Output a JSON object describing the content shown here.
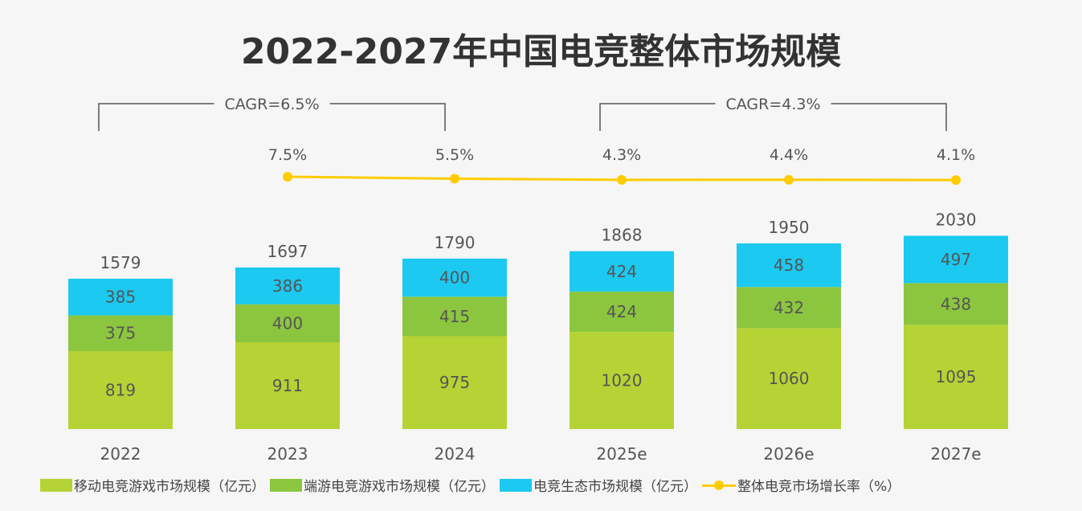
{
  "chart_data": {
    "type": "bar",
    "stacked": true,
    "title": "2022-2027年中国电竞整体市场规模",
    "categories": [
      "2022",
      "2023",
      "2024",
      "2025e",
      "2026e",
      "2027e"
    ],
    "series": [
      {
        "name": "移动电竞游戏市场规模（亿元）",
        "color": "#b5d334",
        "values": [
          819,
          911,
          975,
          1020,
          1060,
          1095
        ]
      },
      {
        "name": "端游电竞游戏市场规模（亿元）",
        "color": "#8cc63f",
        "values": [
          375,
          400,
          415,
          424,
          432,
          438
        ]
      },
      {
        "name": "电竞生态市场规模（亿元）",
        "color": "#1bc9f1",
        "values": [
          385,
          386,
          400,
          424,
          458,
          497
        ]
      }
    ],
    "totals": [
      "1579",
      "1697",
      "1790",
      "1868",
      "1950",
      "2030"
    ],
    "line_series": {
      "name": "整体电竞市场增长率（%）",
      "color": "#ffcc00",
      "categories": [
        "2023",
        "2024",
        "2025e",
        "2026e",
        "2027e"
      ],
      "values": [
        7.5,
        5.5,
        4.3,
        4.4,
        4.1
      ],
      "labels": [
        "7.5%",
        "5.5%",
        "4.3%",
        "4.4%",
        "4.1%"
      ]
    },
    "annotations": [
      {
        "text": "CAGR=6.5%",
        "from": "2022",
        "to": "2024"
      },
      {
        "text": "CAGR=4.3%",
        "from": "2025e",
        "to": "2027e"
      }
    ],
    "legend_position": "bottom",
    "grid": false
  }
}
